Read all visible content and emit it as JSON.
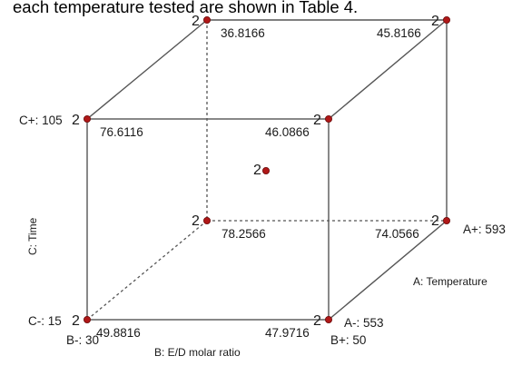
{
  "caption": "each temperature tested are shown in Table 4.",
  "cube": {
    "points": {
      "front_top_left": {
        "value": "76.6116",
        "replicates": "2"
      },
      "front_top_right": {
        "value": "46.0866",
        "replicates": "2"
      },
      "front_bottom_left": {
        "value": "49.8816",
        "replicates": "2"
      },
      "front_bottom_right": {
        "value": "47.9716",
        "replicates": "2"
      },
      "back_top_left": {
        "value": "36.8166",
        "replicates": "2"
      },
      "back_top_right": {
        "value": "45.8166",
        "replicates": "2"
      },
      "back_bottom_left": {
        "value": "78.2566",
        "replicates": "2"
      },
      "back_bottom_right": {
        "value": "74.0566",
        "replicates": "2"
      },
      "center": {
        "replicates": "2"
      }
    },
    "axes": {
      "C": {
        "name": "C: Time",
        "low": "C-: 15",
        "high": "C+: 105"
      },
      "B": {
        "name": "B: E/D molar ratio",
        "low": "B-: 30",
        "high": "B+: 50"
      },
      "A": {
        "name": "A: Temperature",
        "low": "A-: 553",
        "high": "A+: 593"
      }
    },
    "point_color": "#b01818",
    "edge_color": "#555555"
  }
}
